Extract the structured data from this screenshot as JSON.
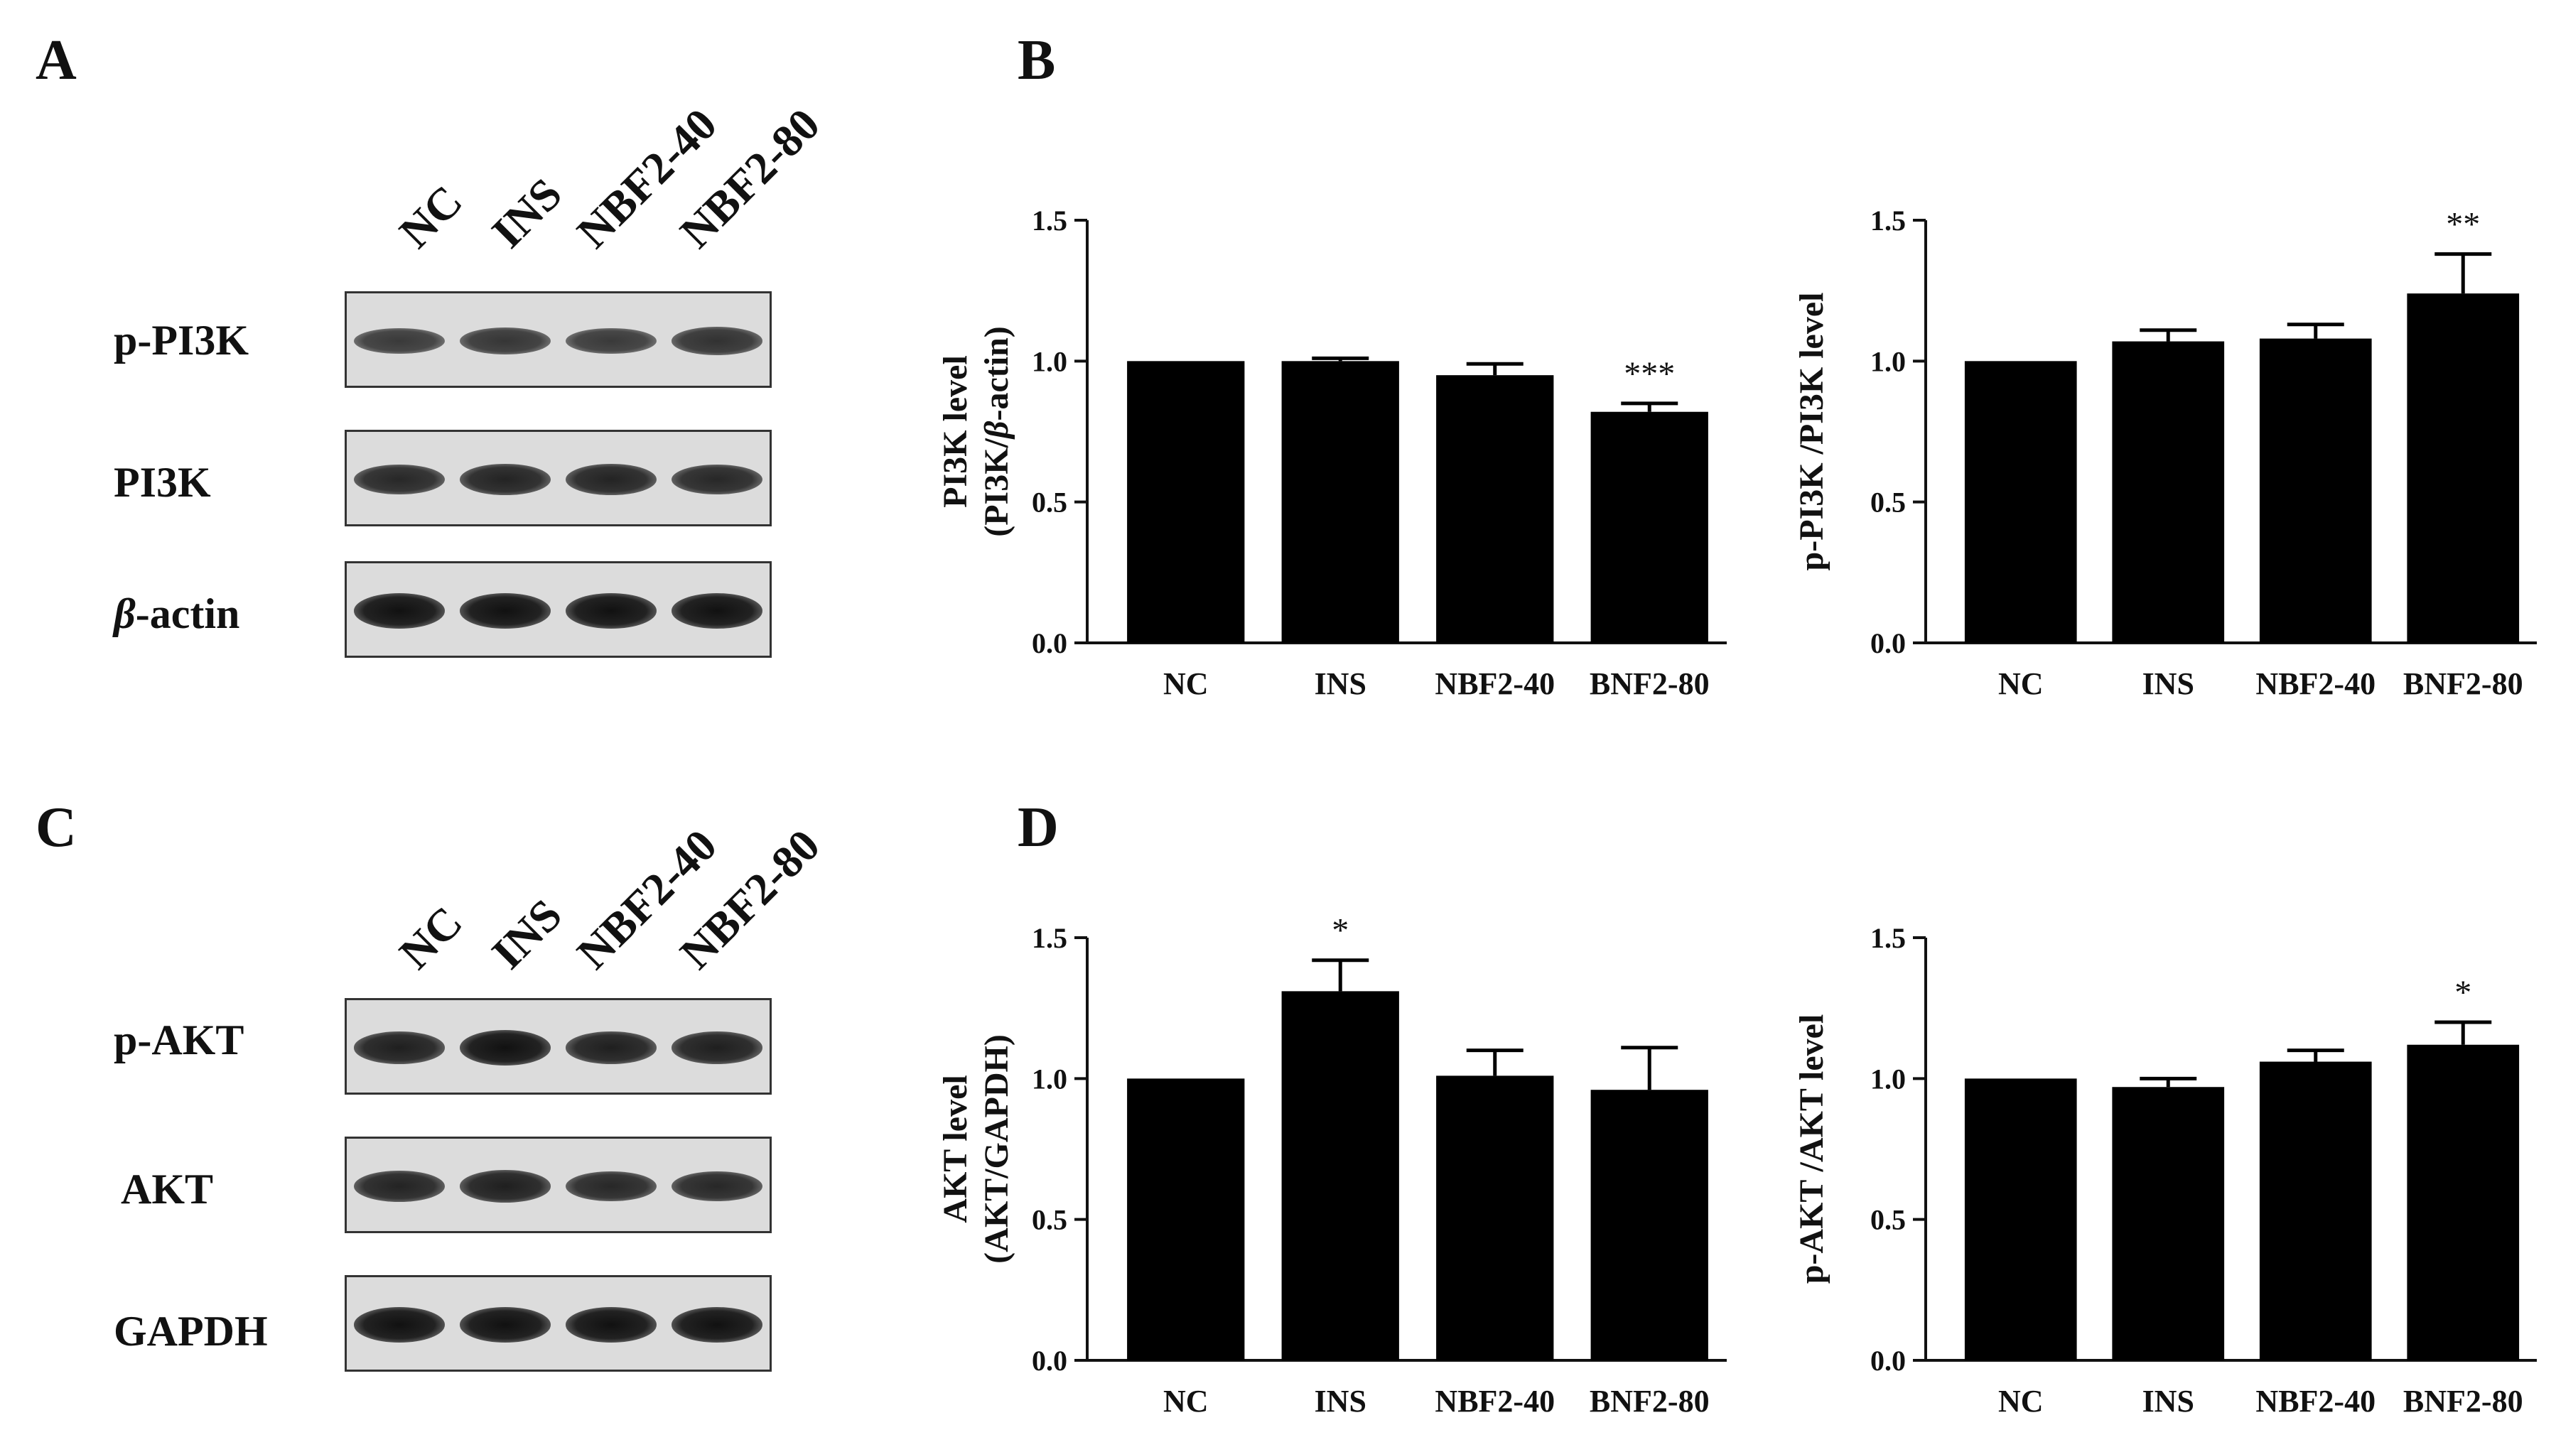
{
  "panel_letters": {
    "a": "A",
    "b": "B",
    "c": "C",
    "d": "D"
  },
  "blot_a": {
    "lanes": [
      "NC",
      "INS",
      "NBF2-40",
      "NBF2-80"
    ],
    "rows": [
      {
        "label_plain": "p-PI3K",
        "band_strength": [
          0.55,
          0.6,
          0.55,
          0.65
        ]
      },
      {
        "label_plain": "PI3K",
        "band_strength": [
          0.75,
          0.8,
          0.8,
          0.75
        ]
      },
      {
        "label_italic": "β",
        "label_rest": "-actin",
        "band_strength": [
          1.0,
          1.0,
          1.0,
          1.0
        ]
      }
    ]
  },
  "blot_c": {
    "lanes": [
      "NC",
      "INS",
      "NBF2-40",
      "NBF2-80"
    ],
    "rows": [
      {
        "label_plain": "p-AKT",
        "band_strength": [
          0.85,
          1.0,
          0.85,
          0.85
        ]
      },
      {
        "label_plain": "AKT",
        "band_strength": [
          0.8,
          0.85,
          0.75,
          0.75
        ]
      },
      {
        "label_plain": "GAPDH",
        "band_strength": [
          1.0,
          1.0,
          1.0,
          1.0
        ]
      }
    ]
  },
  "chart_data": [
    {
      "type": "bar",
      "categories": [
        "NC",
        "INS",
        "NBF2-40",
        "BNF2-80"
      ],
      "values": [
        1.0,
        1.0,
        0.95,
        0.82
      ],
      "errors": [
        0,
        0.01,
        0.04,
        0.03
      ],
      "significance": [
        "",
        "",
        "",
        "***"
      ],
      "ylabel_line1": "PI3K level",
      "ylabel_line2_pre": "(PI3K/",
      "ylabel_line2_ital": "β",
      "ylabel_line2_post": "-actin)",
      "ylim": [
        0,
        1.5
      ],
      "yticks": [
        "0.0",
        "0.5",
        "1.0",
        "1.5"
      ]
    },
    {
      "type": "bar",
      "categories": [
        "NC",
        "INS",
        "NBF2-40",
        "BNF2-80"
      ],
      "values": [
        1.0,
        1.07,
        1.08,
        1.24
      ],
      "errors": [
        0,
        0.04,
        0.05,
        0.14
      ],
      "significance": [
        "",
        "",
        "",
        "**"
      ],
      "ylabel_line1": "p-PI3K /PI3K  level",
      "ylim": [
        0,
        1.5
      ],
      "yticks": [
        "0.0",
        "0.5",
        "1.0",
        "1.5"
      ]
    },
    {
      "type": "bar",
      "categories": [
        "NC",
        "INS",
        "NBF2-40",
        "BNF2-80"
      ],
      "values": [
        1.0,
        1.31,
        1.01,
        0.96
      ],
      "errors": [
        0,
        0.11,
        0.09,
        0.15
      ],
      "significance": [
        "",
        "*",
        "",
        ""
      ],
      "ylabel_line1": "AKT level",
      "ylabel_line2_pre": "(AKT/GAPDH)",
      "ylim": [
        0,
        1.5
      ],
      "yticks": [
        "0.0",
        "0.5",
        "1.0",
        "1.5"
      ]
    },
    {
      "type": "bar",
      "categories": [
        "NC",
        "INS",
        "NBF2-40",
        "BNF2-80"
      ],
      "values": [
        1.0,
        0.97,
        1.06,
        1.12
      ],
      "errors": [
        0,
        0.03,
        0.04,
        0.08
      ],
      "significance": [
        "",
        "",
        "",
        "*"
      ],
      "ylabel_line1": "p-AKT /AKT  level",
      "ylim": [
        0,
        1.5
      ],
      "yticks": [
        "0.0",
        "0.5",
        "1.0",
        "1.5"
      ]
    }
  ]
}
